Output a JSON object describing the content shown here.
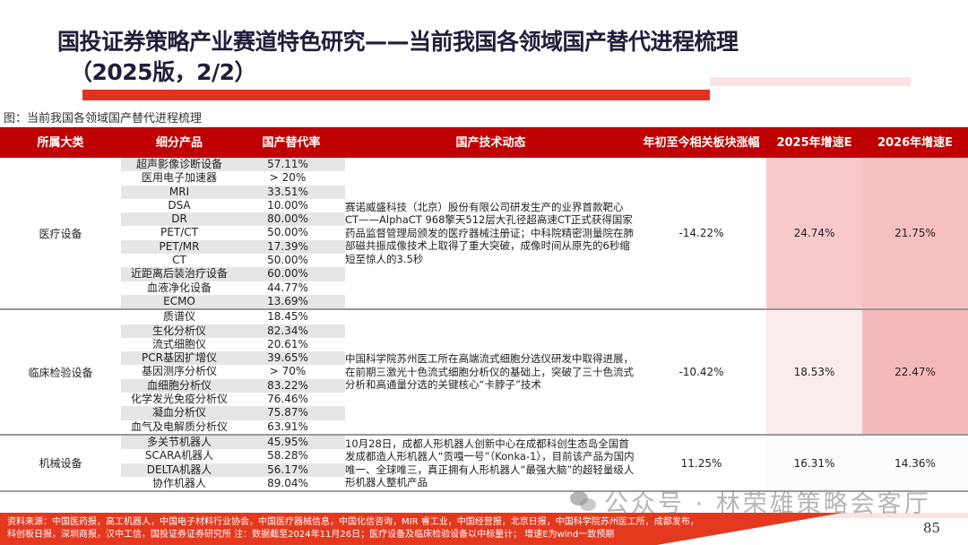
{
  "header": {
    "title_line1": "国投证券策略产业赛道特色研究——当前我国各领域国产替代进程梳理",
    "title_line2": "（2025版，2/2）"
  },
  "figure_caption": "图：当前我国各领域国产替代进程梳理",
  "table": {
    "columns": [
      "所属大类",
      "细分产品",
      "国产替代率",
      "国产技术动态",
      "年初至今相关板块涨幅",
      "2025年增速E",
      "2026年增速E"
    ],
    "groups": [
      {
        "category": "医疗设备",
        "items": [
          {
            "product": "超声影像诊断设备",
            "rate": "57.11%"
          },
          {
            "product": "医用电子加速器",
            "rate": "> 20%"
          },
          {
            "product": "MRI",
            "rate": "33.51%"
          },
          {
            "product": "DSA",
            "rate": "10.00%"
          },
          {
            "product": "DR",
            "rate": "80.00%"
          },
          {
            "product": "PET/CT",
            "rate": "50.00%"
          },
          {
            "product": "PET/MR",
            "rate": "17.39%"
          },
          {
            "product": "CT",
            "rate": "50.00%"
          },
          {
            "product": "近距离后装治疗设备",
            "rate": "60.00%"
          },
          {
            "product": "血液净化设备",
            "rate": "44.77%"
          },
          {
            "product": "ECMO",
            "rate": "13.69%"
          }
        ],
        "news": "赛诺威盛科技（北京）股份有限公司研发生产的业界首款靶心CT——AlphaCT 968擎天512层大孔径超高速CT正式获得国家药品监督管理局颁发的医疗器械注册证；中科院精密测量院在肺部磁共振成像技术上取得了重大突破，成像时间从原先的6秒缩短至惊人的3.5秒",
        "ytd_change": "-14.22%",
        "growth_2025e": "24.74%",
        "growth_2026e": "21.75%"
      },
      {
        "category": "临床检验设备",
        "items": [
          {
            "product": "质谱仪",
            "rate": "18.45%"
          },
          {
            "product": "生化分析仪",
            "rate": "82.34%"
          },
          {
            "product": "流式细胞仪",
            "rate": "20.61%"
          },
          {
            "product": "PCR基因扩增仪",
            "rate": "39.65%"
          },
          {
            "product": "基因测序分析仪",
            "rate": "> 70%"
          },
          {
            "product": "血细胞分析仪",
            "rate": "83.22%"
          },
          {
            "product": "化学发光免疫分析仪",
            "rate": "76.46%"
          },
          {
            "product": "凝血分析仪",
            "rate": "75.87%"
          },
          {
            "product": "血气及电解质分析仪",
            "rate": "63.91%"
          }
        ],
        "news": "中国科学院苏州医工所在高端流式细胞分选仪研发中取得进展，在前期三激光十色流式细胞分析仪的基础上，突破了三十色流式分析和高通量分选的关键核心“卡脖子”技术",
        "ytd_change": "-10.42%",
        "growth_2025e": "18.53%",
        "growth_2026e": "22.47%"
      },
      {
        "category": "机械设备",
        "items": [
          {
            "product": "多关节机器人",
            "rate": "45.95%"
          },
          {
            "product": "SCARA机器人",
            "rate": "58.28%"
          },
          {
            "product": "DELTA机器人",
            "rate": "56.17%"
          },
          {
            "product": "协作机器人",
            "rate": "89.04%"
          }
        ],
        "news": "10月28日，成都人形机器人创新中心在成都科创生态岛全国首发成都造人形机器人“贡嘎一号”（Konka-1），目前该产品为国内唯一、全球唯三，真正拥有人形机器人“最强大脑”的超轻量级人形机器人整机产品",
        "ytd_change": "11.25%",
        "growth_2025e": "16.31%",
        "growth_2026e": "14.36%"
      }
    ]
  },
  "footer": {
    "source_line1": "资料来源：中国医药报，高工机器人，中国电子材料行业协会，中国医疗器械信息，中国化信咨询，MIR 睿工业，中国经营报，北京日报，中国科学院苏州医工所，成都发布，",
    "source_line2": "科创板日报，深圳商报，汉中工信，国投证券证券研究所       注：数据截至2024年11月26日；医疗设备及临床检验设备以中标量计；  增速E为wind一致预期",
    "page_number": "85"
  },
  "watermark": "公众号 · 林荣雄策略会客厅",
  "colors": {
    "header_red": "#c00000",
    "accent_red": "#e0321e",
    "shade_gray": "#e6e6e6",
    "growth_pink": "#f6bfc1"
  }
}
